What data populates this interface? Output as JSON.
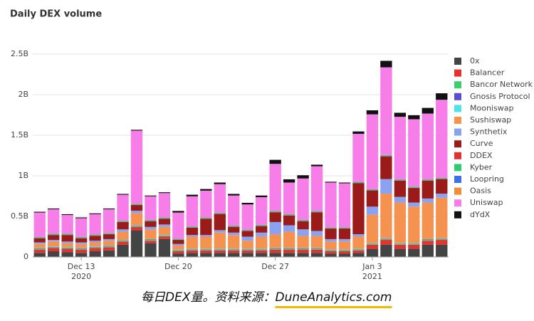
{
  "chart_data": {
    "type": "stacked_bar",
    "title": "Daily DEX volume",
    "caption": "每日DEX量。资料来源：",
    "caption_link": "DuneAnalytics.com",
    "categories": [
      null,
      null,
      null,
      "Dec 13",
      null,
      null,
      null,
      null,
      null,
      null,
      "Dec 20",
      null,
      null,
      null,
      null,
      null,
      null,
      "Dec 27",
      null,
      null,
      null,
      null,
      null,
      null,
      "Jan 3",
      null,
      null,
      null,
      null,
      null
    ],
    "category_years": [
      null,
      null,
      null,
      "2020",
      null,
      null,
      null,
      null,
      null,
      null,
      null,
      null,
      null,
      null,
      null,
      null,
      null,
      null,
      null,
      null,
      null,
      null,
      null,
      null,
      "2021",
      null,
      null,
      null,
      null,
      null
    ],
    "ylim": [
      0,
      2.5
    ],
    "yticks": [
      0,
      {
        "value": 0.5,
        "label": "0.5B"
      },
      {
        "value": 1,
        "label": "1B"
      },
      {
        "value": 1.5,
        "label": "1.5B"
      },
      {
        "value": 2,
        "label": "2B"
      },
      {
        "value": 2.5,
        "label": "2.5B"
      }
    ],
    "grid": true,
    "legend": "right",
    "series": [
      {
        "name": "0x",
        "color": "#444444",
        "values": [
          0.05,
          0.07,
          0.06,
          0.05,
          0.07,
          0.08,
          0.15,
          0.33,
          0.17,
          0.22,
          0.04,
          0.05,
          0.05,
          0.05,
          0.05,
          0.05,
          0.05,
          0.05,
          0.05,
          0.05,
          0.05,
          0.04,
          0.04,
          0.05,
          0.1,
          0.15,
          0.1,
          0.1,
          0.15,
          0.15
        ]
      },
      {
        "name": "Balancer",
        "color": "#e5312f",
        "values": [
          0.04,
          0.04,
          0.04,
          0.04,
          0.04,
          0.04,
          0.04,
          0.04,
          0.03,
          0.03,
          0.03,
          0.03,
          0.03,
          0.03,
          0.03,
          0.03,
          0.03,
          0.04,
          0.04,
          0.04,
          0.04,
          0.03,
          0.03,
          0.03,
          0.05,
          0.06,
          0.05,
          0.05,
          0.05,
          0.06
        ]
      },
      {
        "name": "Bancor Network",
        "color": "#3ccf6a",
        "values": [
          0.01,
          0.01,
          0.01,
          0.01,
          0.01,
          0.01,
          0.01,
          0.01,
          0.01,
          0.01,
          0.01,
          0.01,
          0.01,
          0.01,
          0.01,
          0.01,
          0.01,
          0.01,
          0.01,
          0.01,
          0.01,
          0.01,
          0.01,
          0.01,
          0.01,
          0.01,
          0.01,
          0.01,
          0.01,
          0.01
        ]
      },
      {
        "name": "Gnosis Protocol",
        "color": "#5a4fd1",
        "values": [
          0.005,
          0.005,
          0.005,
          0.005,
          0.005,
          0.005,
          0.005,
          0.005,
          0.005,
          0.005,
          0.005,
          0.005,
          0.005,
          0.005,
          0.005,
          0.005,
          0.005,
          0.005,
          0.005,
          0.005,
          0.005,
          0.005,
          0.005,
          0.005,
          0.005,
          0.005,
          0.005,
          0.005,
          0.005,
          0.005
        ]
      },
      {
        "name": "Mooniswap",
        "color": "#4de3e8",
        "values": [
          0.005,
          0.005,
          0.005,
          0.005,
          0.005,
          0.005,
          0.005,
          0.005,
          0.005,
          0.005,
          0.005,
          0.005,
          0.005,
          0.005,
          0.005,
          0.005,
          0.005,
          0.005,
          0.005,
          0.005,
          0.005,
          0.005,
          0.005,
          0.005,
          0.005,
          0.005,
          0.005,
          0.005,
          0.005,
          0.005
        ]
      },
      {
        "name": "Sushiswap",
        "color": "#f5924f",
        "values": [
          0.05,
          0.06,
          0.05,
          0.05,
          0.05,
          0.06,
          0.1,
          0.15,
          0.12,
          0.1,
          0.05,
          0.15,
          0.15,
          0.2,
          0.17,
          0.1,
          0.15,
          0.17,
          0.2,
          0.15,
          0.15,
          0.1,
          0.1,
          0.15,
          0.35,
          0.55,
          0.5,
          0.45,
          0.45,
          0.5
        ]
      },
      {
        "name": "Synthetix",
        "color": "#8aa2f0",
        "values": [
          0.02,
          0.02,
          0.02,
          0.02,
          0.02,
          0.02,
          0.03,
          0.03,
          0.03,
          0.03,
          0.02,
          0.02,
          0.02,
          0.03,
          0.03,
          0.05,
          0.05,
          0.15,
          0.08,
          0.08,
          0.06,
          0.03,
          0.03,
          0.03,
          0.1,
          0.18,
          0.07,
          0.05,
          0.05,
          0.05
        ]
      },
      {
        "name": "Curve",
        "color": "#9b1b1b",
        "values": [
          0.05,
          0.06,
          0.08,
          0.05,
          0.06,
          0.06,
          0.09,
          0.07,
          0.07,
          0.07,
          0.05,
          0.09,
          0.2,
          0.2,
          0.07,
          0.07,
          0.08,
          0.12,
          0.12,
          0.1,
          0.23,
          0.13,
          0.13,
          0.63,
          0.2,
          0.28,
          0.2,
          0.18,
          0.22,
          0.18
        ]
      },
      {
        "name": "DDEX",
        "color": "#e03232",
        "values": [
          0.002,
          0.002,
          0.002,
          0.002,
          0.002,
          0.002,
          0.002,
          0.002,
          0.002,
          0.002,
          0.002,
          0.002,
          0.002,
          0.002,
          0.002,
          0.002,
          0.002,
          0.002,
          0.002,
          0.002,
          0.002,
          0.002,
          0.002,
          0.002,
          0.002,
          0.002,
          0.002,
          0.002,
          0.002,
          0.002
        ]
      },
      {
        "name": "Kyber",
        "color": "#2ecc71",
        "values": [
          0.01,
          0.01,
          0.01,
          0.01,
          0.01,
          0.01,
          0.01,
          0.01,
          0.01,
          0.01,
          0.01,
          0.01,
          0.01,
          0.01,
          0.01,
          0.01,
          0.01,
          0.01,
          0.01,
          0.01,
          0.01,
          0.01,
          0.01,
          0.01,
          0.01,
          0.01,
          0.01,
          0.01,
          0.01,
          0.01
        ]
      },
      {
        "name": "Loopring",
        "color": "#3d6ff0",
        "values": [
          0.003,
          0.003,
          0.003,
          0.003,
          0.003,
          0.003,
          0.003,
          0.003,
          0.003,
          0.003,
          0.003,
          0.003,
          0.003,
          0.003,
          0.003,
          0.003,
          0.003,
          0.003,
          0.003,
          0.003,
          0.003,
          0.003,
          0.003,
          0.003,
          0.003,
          0.003,
          0.003,
          0.003,
          0.003,
          0.003
        ]
      },
      {
        "name": "Oasis",
        "color": "#f28c38",
        "values": [
          0.002,
          0.002,
          0.002,
          0.002,
          0.002,
          0.002,
          0.002,
          0.002,
          0.002,
          0.002,
          0.002,
          0.002,
          0.002,
          0.002,
          0.002,
          0.002,
          0.002,
          0.002,
          0.002,
          0.002,
          0.002,
          0.002,
          0.002,
          0.002,
          0.002,
          0.002,
          0.002,
          0.002,
          0.002,
          0.002
        ]
      },
      {
        "name": "Uniswap",
        "color": "#f77ee8",
        "values": [
          0.3,
          0.3,
          0.23,
          0.23,
          0.25,
          0.29,
          0.32,
          0.9,
          0.29,
          0.3,
          0.32,
          0.37,
          0.33,
          0.35,
          0.37,
          0.31,
          0.34,
          0.58,
          0.39,
          0.51,
          0.55,
          0.55,
          0.54,
          0.59,
          0.92,
          1.08,
          0.77,
          0.83,
          0.81,
          0.96
        ]
      },
      {
        "name": "dYdX",
        "color": "#111111",
        "values": [
          0.01,
          0.01,
          0.01,
          0.01,
          0.01,
          0.01,
          0.01,
          0.01,
          0.01,
          0.01,
          0.02,
          0.02,
          0.02,
          0.02,
          0.02,
          0.02,
          0.02,
          0.05,
          0.04,
          0.04,
          0.02,
          0.01,
          0.01,
          0.03,
          0.05,
          0.08,
          0.05,
          0.05,
          0.07,
          0.08
        ]
      }
    ]
  }
}
